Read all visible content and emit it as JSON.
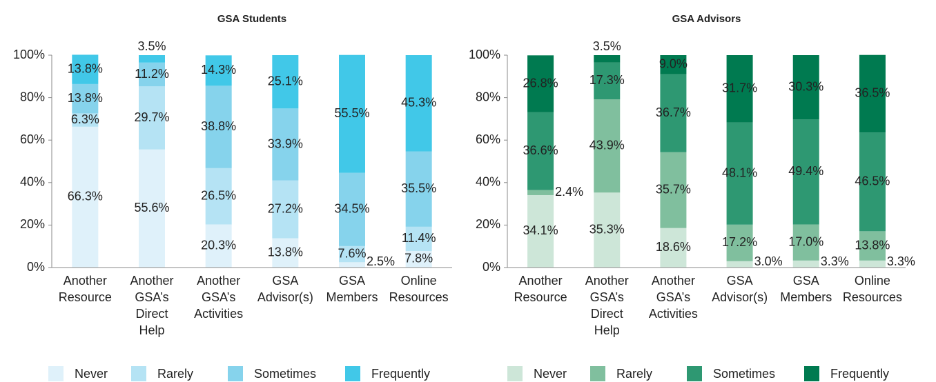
{
  "chart_data": [
    {
      "type": "bar",
      "stacked": true,
      "title": "GSA Students",
      "legend": "bottom",
      "categories": [
        "Another\nResource",
        "Another\nGSA’s\nDirect\nHelp",
        "Another\nGSA’s\nActivities",
        "GSA\nAdvisor(s)",
        "GSA\nMembers",
        "Online\nResources"
      ],
      "ylim": [
        0,
        100
      ],
      "yticks": [
        {
          "value": 0,
          "label": "0%"
        },
        {
          "value": 20,
          "label": "20%"
        },
        {
          "value": 40,
          "label": "40%"
        },
        {
          "value": 60,
          "label": "60%"
        },
        {
          "value": 80,
          "label": "80%"
        },
        {
          "value": 100,
          "label": "100%"
        }
      ],
      "series": [
        {
          "name": "Never",
          "color": "#dff1fa",
          "values": [
            66.3,
            55.6,
            20.3,
            13.8,
            2.5,
            7.8
          ],
          "value_labels": [
            "66.3%",
            "55.6%",
            "20.3%",
            "13.8%",
            "2.5%",
            "7.8%"
          ]
        },
        {
          "name": "Rarely",
          "color": "#b5e3f4",
          "values": [
            6.3,
            29.7,
            26.5,
            27.2,
            7.6,
            11.4
          ],
          "value_labels": [
            "6.3%",
            "29.7%",
            "26.5%",
            "27.2%",
            "7.6%",
            "11.4%"
          ]
        },
        {
          "name": "Sometimes",
          "color": "#86d3ec",
          "values": [
            13.8,
            11.2,
            38.8,
            33.9,
            34.5,
            35.5
          ],
          "value_labels": [
            "13.8%",
            "11.2%",
            "38.8%",
            "33.9%",
            "34.5%",
            "35.5%"
          ]
        },
        {
          "name": "Frequently",
          "color": "#41c8e8",
          "values": [
            13.8,
            3.5,
            14.3,
            25.1,
            55.5,
            45.3
          ],
          "value_labels": [
            "13.8%",
            "3.5%",
            "14.3%",
            "25.1%",
            "55.5%",
            "45.3%"
          ]
        }
      ]
    },
    {
      "type": "bar",
      "stacked": true,
      "title": "GSA Advisors",
      "legend": "bottom",
      "categories": [
        "Another\nResource",
        "Another\nGSA’s\nDirect\nHelp",
        "Another\nGSA’s\nActivities",
        "GSA\nAdvisor(s)",
        "GSA\nMembers",
        "Online\nResources"
      ],
      "ylim": [
        0,
        100
      ],
      "yticks": [
        {
          "value": 0,
          "label": "0%"
        },
        {
          "value": 20,
          "label": "20%"
        },
        {
          "value": 40,
          "label": "40%"
        },
        {
          "value": 60,
          "label": "60%"
        },
        {
          "value": 80,
          "label": "80%"
        },
        {
          "value": 100,
          "label": "100%"
        }
      ],
      "series": [
        {
          "name": "Never",
          "color": "#cde6d8",
          "values": [
            34.1,
            35.3,
            18.6,
            3.0,
            3.3,
            3.3
          ],
          "value_labels": [
            "34.1%",
            "35.3%",
            "18.6%",
            "3.0%",
            "3.3%",
            "3.3%"
          ]
        },
        {
          "name": "Rarely",
          "color": "#80bf9e",
          "values": [
            2.4,
            43.9,
            35.7,
            17.2,
            17.0,
            13.8
          ],
          "value_labels": [
            "2.4%",
            "43.9%",
            "35.7%",
            "17.2%",
            "17.0%",
            "13.8%"
          ]
        },
        {
          "name": "Sometimes",
          "color": "#2e9872",
          "values": [
            36.6,
            17.3,
            36.7,
            48.1,
            49.4,
            46.5
          ],
          "value_labels": [
            "36.6%",
            "17.3%",
            "36.7%",
            "48.1%",
            "49.4%",
            "46.5%"
          ]
        },
        {
          "name": "Frequently",
          "color": "#007a50",
          "values": [
            26.8,
            3.5,
            9.0,
            31.7,
            30.3,
            36.5
          ],
          "value_labels": [
            "26.8%",
            "3.5%",
            "9.0%",
            "31.7%",
            "30.3%",
            "36.5%"
          ]
        }
      ]
    }
  ]
}
